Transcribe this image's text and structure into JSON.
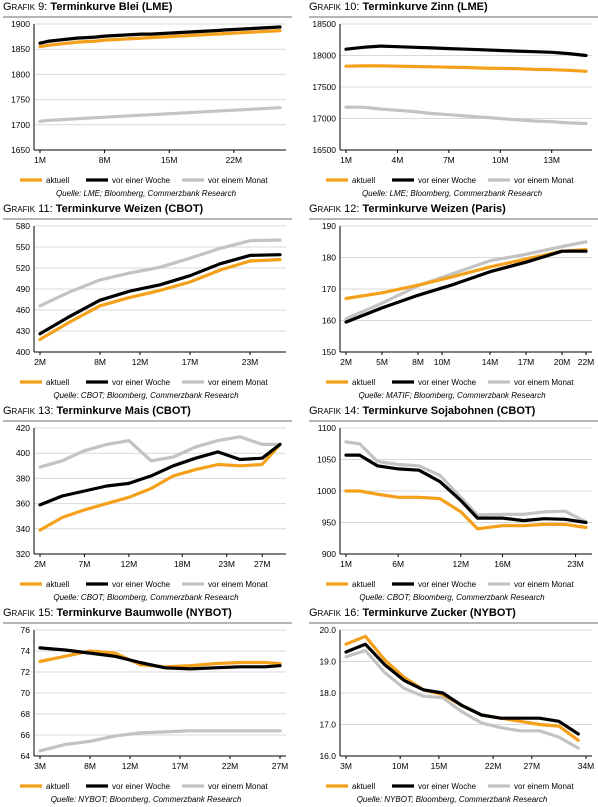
{
  "legend_labels": [
    "aktuell",
    "vor einer Woche",
    "vor einem Monat"
  ],
  "colors": {
    "aktuell": "#f5a01a",
    "woche": "#000000",
    "monat": "#c3c3c3",
    "grid": "#d9d9d9"
  },
  "chart_data": [
    {
      "type": "line",
      "label_prefix": "Grafik 9:",
      "title": "Terminkurve Blei (LME)",
      "ylim": [
        1650,
        1900
      ],
      "yticks": [
        1650,
        1700,
        1750,
        1800,
        1850,
        1900
      ],
      "x": [
        1,
        2,
        3,
        4,
        5,
        6,
        7,
        8,
        9,
        10,
        11,
        12,
        13,
        14,
        15,
        16,
        17,
        18,
        19,
        20,
        21,
        22,
        23,
        24,
        25,
        26,
        27
      ],
      "xticks": [
        {
          "x": 1,
          "label": "1M"
        },
        {
          "x": 8,
          "label": "8M"
        },
        {
          "x": 15,
          "label": "15M"
        },
        {
          "x": 22,
          "label": "22M"
        }
      ],
      "series": [
        {
          "name": "aktuell",
          "values": [
            1855,
            1858,
            1860,
            1862,
            1864,
            1865,
            1866,
            1868,
            1869,
            1870,
            1871,
            1872,
            1873,
            1874,
            1875,
            1876,
            1877,
            1878,
            1879,
            1880,
            1881,
            1882,
            1883,
            1884,
            1885,
            1886,
            1887
          ]
        },
        {
          "name": "vor einer Woche",
          "values": [
            1862,
            1866,
            1868,
            1870,
            1872,
            1873,
            1874,
            1876,
            1877,
            1878,
            1879,
            1880,
            1880,
            1881,
            1882,
            1883,
            1884,
            1885,
            1886,
            1887,
            1888,
            1889,
            1890,
            1891,
            1892,
            1893,
            1894
          ]
        },
        {
          "name": "vor einem Monat",
          "values": [
            1707,
            1709,
            1710,
            1711,
            1712,
            1713,
            1714,
            1715,
            1716,
            1717,
            1718,
            1719,
            1720,
            1721,
            1722,
            1723,
            1724,
            1725,
            1726,
            1727,
            1728,
            1729,
            1730,
            1731,
            1732,
            1733,
            1734
          ]
        }
      ],
      "source": "Quelle: LME; Bloomberg, Commerzbank Research"
    },
    {
      "type": "line",
      "label_prefix": "Grafik 10:",
      "title": "Terminkurve Zinn (LME)",
      "ylim": [
        16500,
        18500
      ],
      "yticks": [
        16500,
        17000,
        17500,
        18000,
        18500
      ],
      "x": [
        1,
        2,
        3,
        4,
        5,
        6,
        7,
        8,
        9,
        10,
        11,
        12,
        13,
        14,
        15
      ],
      "xticks": [
        {
          "x": 1,
          "label": "1M"
        },
        {
          "x": 4,
          "label": "4M"
        },
        {
          "x": 7,
          "label": "7M"
        },
        {
          "x": 10,
          "label": "10M"
        },
        {
          "x": 13,
          "label": "13M"
        }
      ],
      "series": [
        {
          "name": "aktuell",
          "values": [
            17830,
            17835,
            17835,
            17830,
            17825,
            17820,
            17815,
            17810,
            17800,
            17795,
            17790,
            17780,
            17775,
            17765,
            17750
          ]
        },
        {
          "name": "vor einer Woche",
          "values": [
            18100,
            18130,
            18150,
            18140,
            18130,
            18120,
            18110,
            18100,
            18090,
            18080,
            18070,
            18060,
            18050,
            18030,
            18000
          ]
        },
        {
          "name": "vor einem Monat",
          "values": [
            17180,
            17180,
            17150,
            17130,
            17110,
            17080,
            17060,
            17040,
            17020,
            17000,
            16980,
            16960,
            16950,
            16930,
            16920
          ]
        }
      ],
      "source": "Quelle: LME; Bloomberg, Commerzbank Research"
    },
    {
      "type": "line",
      "label_prefix": "Grafik 11:",
      "title": "Terminkurve Weizen (CBOT)",
      "ylim": [
        400,
        580
      ],
      "yticks": [
        400,
        430,
        460,
        490,
        520,
        550,
        580
      ],
      "x": [
        2,
        5,
        8,
        11,
        14,
        17,
        20,
        23,
        26
      ],
      "xticks": [
        {
          "x": 2,
          "label": "2M"
        },
        {
          "x": 8,
          "label": "8M"
        },
        {
          "x": 12,
          "label": "12M"
        },
        {
          "x": 17,
          "label": "17M"
        },
        {
          "x": 23,
          "label": "23M"
        }
      ],
      "series": [
        {
          "name": "aktuell",
          "values": [
            418,
            443,
            466,
            478,
            488,
            500,
            517,
            530,
            532
          ]
        },
        {
          "name": "vor einer Woche",
          "values": [
            426,
            451,
            474,
            487,
            496,
            509,
            526,
            538,
            539
          ]
        },
        {
          "name": "vor einem Monat",
          "values": [
            466,
            486,
            503,
            513,
            521,
            534,
            548,
            559,
            560
          ]
        }
      ],
      "source": "Quelle: CBOT; Bloomberg, Commerzbank Research"
    },
    {
      "type": "line",
      "label_prefix": "Grafik 12:",
      "title": "Terminkurve Weizen (Paris)",
      "ylim": [
        150,
        190
      ],
      "yticks": [
        150,
        160,
        170,
        180,
        190
      ],
      "x": [
        2,
        5,
        8,
        11,
        14,
        17,
        20,
        22
      ],
      "xticks": [
        {
          "x": 2,
          "label": "2M"
        },
        {
          "x": 5,
          "label": "5M"
        },
        {
          "x": 8,
          "label": "8M"
        },
        {
          "x": 10,
          "label": "10M"
        },
        {
          "x": 14,
          "label": "14M"
        },
        {
          "x": 17,
          "label": "17M"
        },
        {
          "x": 20,
          "label": "20M"
        },
        {
          "x": 22,
          "label": "22M"
        }
      ],
      "series": [
        {
          "name": "aktuell",
          "values": [
            167,
            168.8,
            171.2,
            174,
            177,
            179.5,
            182,
            182.5
          ]
        },
        {
          "name": "vor einer Woche",
          "values": [
            159.5,
            164,
            168,
            171.5,
            175.5,
            178.5,
            182,
            182
          ]
        },
        {
          "name": "vor einem Monat",
          "values": [
            160.5,
            165.5,
            171,
            175,
            179,
            181,
            183.5,
            185
          ]
        }
      ],
      "source": "Quelle: MATIF; Bloomberg, Commerzbank Research"
    },
    {
      "type": "line",
      "label_prefix": "Grafik 13:",
      "title": "Terminkurve Mais (CBOT)",
      "ylim": [
        320,
        420
      ],
      "yticks": [
        320,
        340,
        360,
        380,
        400,
        420
      ],
      "x": [
        2,
        4.5,
        7,
        9.5,
        12,
        14.5,
        17,
        19.5,
        22,
        24.5,
        27,
        29
      ],
      "xticks": [
        {
          "x": 2,
          "label": "2M"
        },
        {
          "x": 7,
          "label": "7M"
        },
        {
          "x": 12,
          "label": "12M"
        },
        {
          "x": 18,
          "label": "18M"
        },
        {
          "x": 23,
          "label": "23M"
        },
        {
          "x": 27,
          "label": "27M"
        }
      ],
      "series": [
        {
          "name": "aktuell",
          "values": [
            339,
            349,
            355,
            360,
            365,
            372,
            382,
            387,
            391,
            390,
            391,
            407
          ]
        },
        {
          "name": "vor einer Woche",
          "values": [
            359,
            366,
            370,
            374,
            376,
            382,
            390,
            396,
            401,
            395,
            396,
            407
          ]
        },
        {
          "name": "vor einem Monat",
          "values": [
            389,
            394,
            402,
            407,
            410,
            394,
            397,
            405,
            410,
            413,
            407,
            407
          ]
        }
      ],
      "source": "Quelle: CBOT; Bloomberg, Commerzbank Research"
    },
    {
      "type": "line",
      "label_prefix": "Grafik 14:",
      "title": "Terminkurve Sojabohnen (CBOT)",
      "ylim": [
        900,
        1100
      ],
      "yticks": [
        900,
        950,
        1000,
        1050,
        1100
      ],
      "x": [
        1,
        2.3,
        4,
        6,
        8,
        10,
        12,
        13.6,
        16,
        18,
        20,
        22,
        24
      ],
      "xticks": [
        {
          "x": 1,
          "label": "1M"
        },
        {
          "x": 6,
          "label": "6M"
        },
        {
          "x": 12,
          "label": "12M"
        },
        {
          "x": 16,
          "label": "16M"
        },
        {
          "x": 23,
          "label": "23M"
        }
      ],
      "series": [
        {
          "name": "aktuell",
          "values": [
            1000,
            1000,
            995,
            990,
            990,
            988,
            967,
            940,
            945,
            945,
            947,
            947,
            942
          ]
        },
        {
          "name": "vor einer Woche",
          "values": [
            1057,
            1057,
            1040,
            1035,
            1033,
            1015,
            985,
            957,
            957,
            953,
            956,
            955,
            950
          ]
        },
        {
          "name": "vor einem Monat",
          "values": [
            1078,
            1075,
            1047,
            1042,
            1040,
            1025,
            990,
            962,
            963,
            963,
            967,
            968,
            951
          ]
        }
      ],
      "source": "Quelle: CBOT; Bloomberg, Commerzbank Research"
    },
    {
      "type": "line",
      "label_prefix": "Grafik 15:",
      "title": "Terminkurve Baumwolle (NYBOT)",
      "ylim": [
        64,
        76
      ],
      "yticks": [
        64,
        66,
        68,
        70,
        72,
        74,
        76
      ],
      "x": [
        3,
        5.5,
        8,
        10.5,
        13,
        15.5,
        18,
        20.5,
        23,
        25.5,
        27
      ],
      "xticks": [
        {
          "x": 3,
          "label": "3M"
        },
        {
          "x": 8,
          "label": "8M"
        },
        {
          "x": 12,
          "label": "12M"
        },
        {
          "x": 17,
          "label": "17M"
        },
        {
          "x": 22,
          "label": "22M"
        },
        {
          "x": 27,
          "label": "27M"
        }
      ],
      "series": [
        {
          "name": "aktuell",
          "values": [
            73,
            73.5,
            74,
            73.8,
            72.7,
            72.5,
            72.6,
            72.8,
            72.9,
            72.9,
            72.8
          ]
        },
        {
          "name": "vor einer Woche",
          "values": [
            74.3,
            74.1,
            73.8,
            73.5,
            72.9,
            72.4,
            72.3,
            72.4,
            72.5,
            72.5,
            72.6
          ]
        },
        {
          "name": "vor einem Monat",
          "values": [
            64.5,
            65.1,
            65.4,
            65.9,
            66.2,
            66.3,
            66.4,
            66.4,
            66.4,
            66.4,
            66.4
          ]
        }
      ],
      "source": "Quelle: NYBOT; Bloomberg, Commerzbank Research"
    },
    {
      "type": "line",
      "label_prefix": "Grafik 16:",
      "title": "Terminkurve Zucker (NYBOT)",
      "ylim": [
        16,
        20
      ],
      "yticks": [
        16.0,
        17.0,
        18.0,
        19.0,
        20.0
      ],
      "x": [
        3,
        5.5,
        8,
        10.5,
        13,
        15.5,
        18,
        20.5,
        23,
        25.5,
        28,
        30.5,
        33
      ],
      "xticks": [
        {
          "x": 3,
          "label": "3M"
        },
        {
          "x": 10,
          "label": "10M"
        },
        {
          "x": 15,
          "label": "15M"
        },
        {
          "x": 22,
          "label": "22M"
        },
        {
          "x": 27,
          "label": "27M"
        },
        {
          "x": 34,
          "label": "34M"
        }
      ],
      "series": [
        {
          "name": "aktuell",
          "values": [
            19.55,
            19.8,
            19.05,
            18.5,
            18.1,
            17.95,
            17.6,
            17.3,
            17.2,
            17.1,
            17.0,
            16.95,
            16.5
          ]
        },
        {
          "name": "vor einer Woche",
          "values": [
            19.3,
            19.55,
            18.9,
            18.4,
            18.1,
            18.0,
            17.6,
            17.3,
            17.2,
            17.2,
            17.2,
            17.1,
            16.7
          ]
        },
        {
          "name": "vor einem Monat",
          "values": [
            19.15,
            19.35,
            18.65,
            18.15,
            17.9,
            17.85,
            17.4,
            17.05,
            16.9,
            16.8,
            16.8,
            16.6,
            16.25
          ]
        }
      ],
      "source": "Quelle: NYBOT; Bloomberg, Commerzbank Research"
    }
  ]
}
